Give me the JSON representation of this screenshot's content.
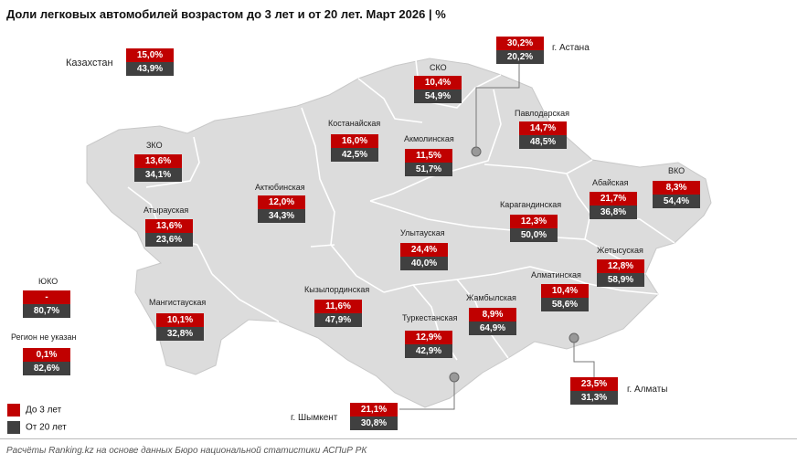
{
  "title": "Доли легковых автомобилей возрастом до 3 лет и от 20 лет. Март 2026 | %",
  "legend": {
    "young_label": "До 3 лет",
    "old_label": "От 20 лет"
  },
  "colors": {
    "young": "#c00000",
    "old": "#404040",
    "map_fill": "#dcdcdc",
    "border": "#ffffff"
  },
  "footer": "Расчёты Ranking.kz на основе данных Бюро национальной статистики АСПиР РК",
  "regions": [
    {
      "name": "Казахстан",
      "young": "15,0%",
      "old": "43,9%"
    },
    {
      "name": "г. Астана",
      "young": "30,2%",
      "old": "20,2%"
    },
    {
      "name": "СКО",
      "young": "10,4%",
      "old": "54,9%"
    },
    {
      "name": "Павлодарская",
      "young": "14,7%",
      "old": "48,5%"
    },
    {
      "name": "Костанайская",
      "young": "16,0%",
      "old": "42,5%"
    },
    {
      "name": "Акмолинская",
      "young": "11,5%",
      "old": "51,7%"
    },
    {
      "name": "ЗКО",
      "young": "13,6%",
      "old": "34,1%"
    },
    {
      "name": "Актюбинская",
      "young": "12,0%",
      "old": "34,3%"
    },
    {
      "name": "Абайская",
      "young": "21,7%",
      "old": "36,8%"
    },
    {
      "name": "ВКО",
      "young": "8,3%",
      "old": "54,4%"
    },
    {
      "name": "Атырауская",
      "young": "13,6%",
      "old": "23,6%"
    },
    {
      "name": "Карагандинская",
      "young": "12,3%",
      "old": "50,0%"
    },
    {
      "name": "Улытауская",
      "young": "24,4%",
      "old": "40,0%"
    },
    {
      "name": "Жетысуская",
      "young": "12,8%",
      "old": "58,9%"
    },
    {
      "name": "ЮКО",
      "young": "-",
      "old": "80,7%"
    },
    {
      "name": "Алматинская",
      "young": "10,4%",
      "old": "58,6%"
    },
    {
      "name": "Мангистауская",
      "young": "10,1%",
      "old": "32,8%"
    },
    {
      "name": "Кызылординская",
      "young": "11,6%",
      "old": "47,9%"
    },
    {
      "name": "Жамбылская",
      "young": "8,9%",
      "old": "64,9%"
    },
    {
      "name": "Регион не указан",
      "young": "0,1%",
      "old": "82,6%"
    },
    {
      "name": "Туркестанская",
      "young": "12,9%",
      "old": "42,9%"
    },
    {
      "name": "г. Алматы",
      "young": "23,5%",
      "old": "31,3%"
    },
    {
      "name": "г. Шымкент",
      "young": "21,1%",
      "old": "30,8%"
    }
  ]
}
